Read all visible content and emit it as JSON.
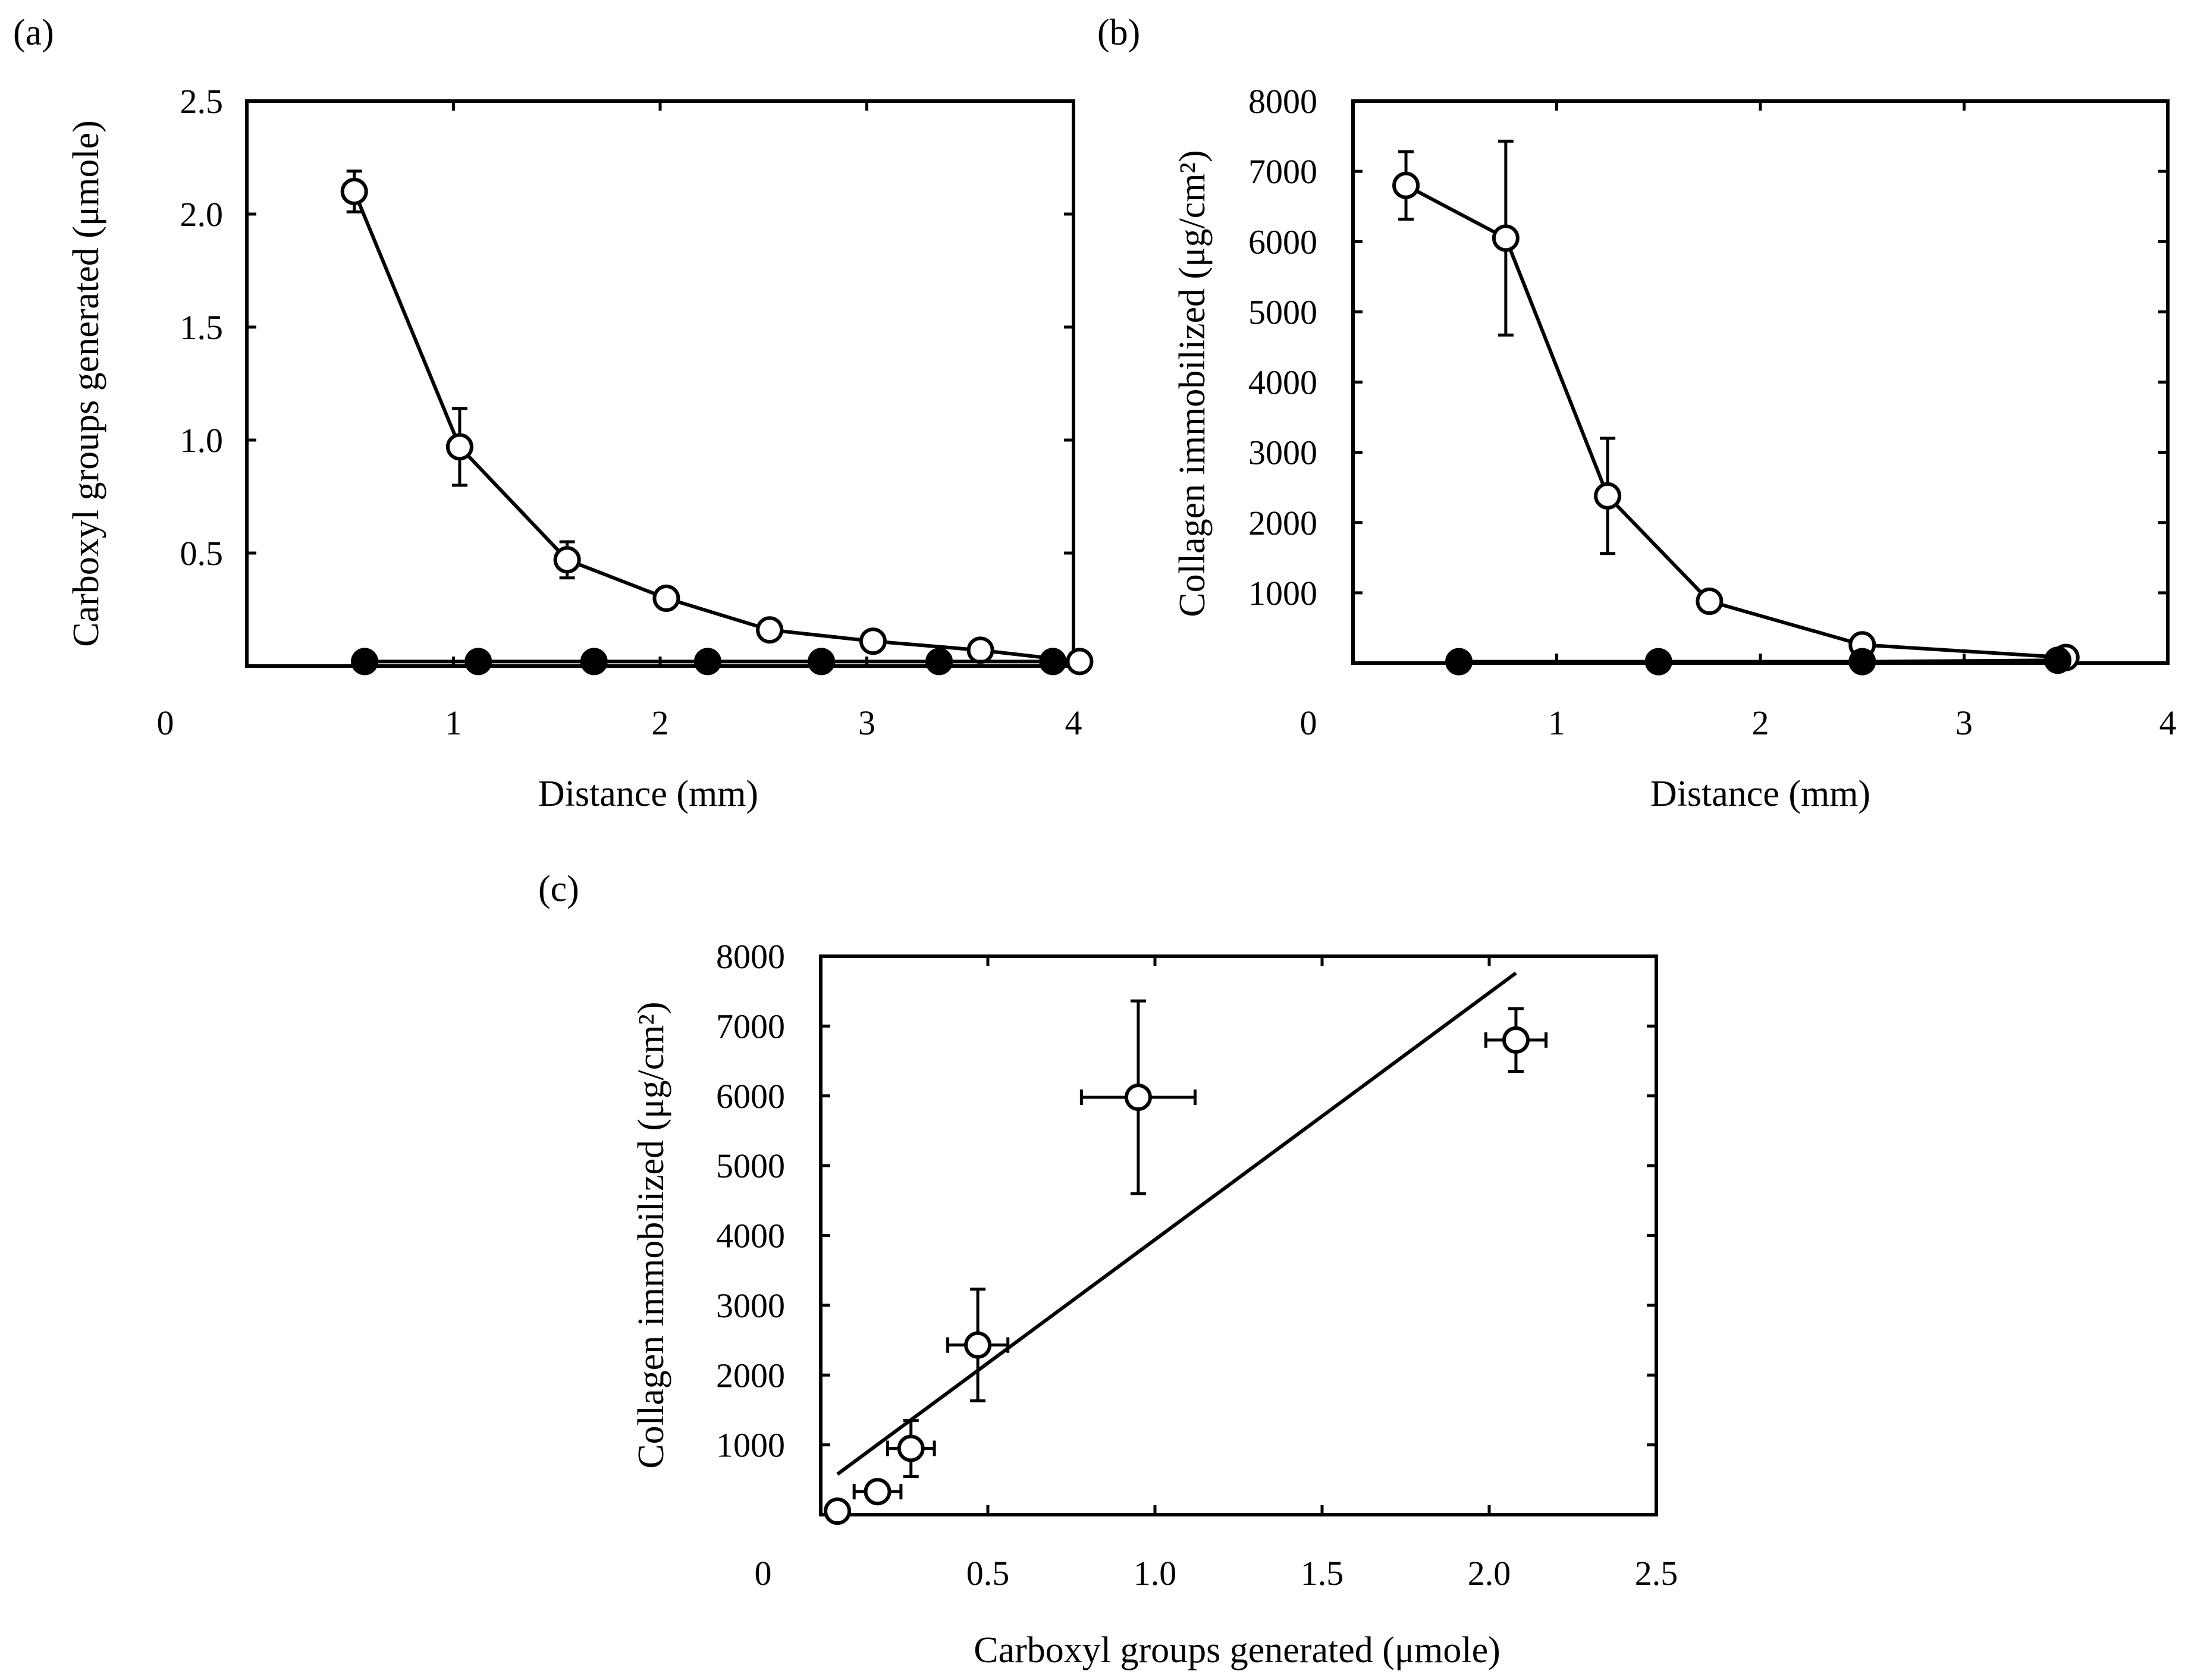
{
  "colors": {
    "ink": "#000000",
    "open_fill": "#ffffff",
    "background": "#ffffff"
  },
  "chart_data": [
    {
      "panel_label": "(a)",
      "type": "line",
      "xlabel": "Distance (mm)",
      "ylabel": "Carboxyl groups generated (μmole)",
      "xlim": [
        0,
        4
      ],
      "ylim": [
        0,
        2.5
      ],
      "xticks": [
        1,
        2,
        3,
        4
      ],
      "yticks": [
        0.5,
        1.0,
        1.5,
        2.0,
        2.5
      ],
      "xtick_labels": [
        "1",
        "2",
        "3",
        "4"
      ],
      "ytick_labels": [
        "0.5",
        "1.0",
        "1.5",
        "2.0",
        "2.5"
      ],
      "origin_label": "0",
      "series": [
        {
          "name": "open circles",
          "marker": "open",
          "connected": true,
          "x": [
            0.52,
            1.03,
            1.55,
            2.03,
            2.53,
            3.03,
            3.55,
            4.03
          ],
          "y": [
            2.1,
            0.97,
            0.47,
            0.3,
            0.16,
            0.11,
            0.07,
            0.02
          ],
          "yerr": [
            0.09,
            0.17,
            0.08,
            0.03,
            0.04,
            0.03,
            0.03,
            0.01
          ]
        },
        {
          "name": "filled circles",
          "marker": "filled",
          "connected": true,
          "x": [
            0.57,
            1.12,
            1.68,
            2.23,
            2.78,
            3.35,
            3.9
          ],
          "y": [
            0.02,
            0.02,
            0.02,
            0.02,
            0.02,
            0.02,
            0.02
          ],
          "yerr": [
            0,
            0,
            0,
            0,
            0,
            0,
            0
          ]
        }
      ]
    },
    {
      "panel_label": "(b)",
      "type": "line",
      "xlabel": "Distance (mm)",
      "ylabel": "Collagen immobilized (μg/cm²)",
      "xlim": [
        0,
        4
      ],
      "ylim": [
        0,
        8000
      ],
      "xticks": [
        1,
        2,
        3,
        4
      ],
      "yticks": [
        1000,
        2000,
        3000,
        4000,
        5000,
        6000,
        7000,
        8000
      ],
      "xtick_labels": [
        "1",
        "2",
        "3",
        "4"
      ],
      "ytick_labels": [
        "1000",
        "2000",
        "3000",
        "4000",
        "5000",
        "6000",
        "7000",
        "8000"
      ],
      "origin_label": "0",
      "series": [
        {
          "name": "open circles",
          "marker": "open",
          "connected": true,
          "x": [
            0.26,
            0.75,
            1.25,
            1.75,
            2.5,
            3.5
          ],
          "y": [
            6800,
            6050,
            2380,
            880,
            260,
            80
          ],
          "yerr": [
            480,
            1380,
            820,
            0,
            0,
            0
          ]
        },
        {
          "name": "filled circles",
          "marker": "filled",
          "connected": true,
          "x": [
            0.52,
            1.5,
            2.5,
            3.46
          ],
          "y": [
            20,
            20,
            20,
            40
          ],
          "yerr": [
            0,
            0,
            0,
            0
          ]
        }
      ]
    },
    {
      "panel_label": "(c)",
      "type": "scatter",
      "xlabel": "Carboxyl groups generated (μmole)",
      "ylabel": "Collagen immobilized (μg/cm²)",
      "xlim": [
        0,
        2.5
      ],
      "ylim": [
        0,
        8000
      ],
      "xticks": [
        0.5,
        1.0,
        1.5,
        2.0,
        2.5
      ],
      "yticks": [
        1000,
        2000,
        3000,
        4000,
        5000,
        6000,
        7000,
        8000
      ],
      "xtick_labels": [
        "0.5",
        "1.0",
        "1.5",
        "2.0",
        "2.5"
      ],
      "ytick_labels": [
        "1000",
        "2000",
        "3000",
        "4000",
        "5000",
        "6000",
        "7000",
        "8000"
      ],
      "origin_label": "0",
      "series": [
        {
          "name": "data",
          "marker": "open",
          "connected": false,
          "x": [
            0.05,
            0.17,
            0.27,
            0.47,
            0.95,
            2.08
          ],
          "y": [
            50,
            330,
            950,
            2430,
            5980,
            6800
          ],
          "xerr": [
            0,
            0.07,
            0.07,
            0.09,
            0.17,
            0.09
          ],
          "yerr": [
            0,
            0,
            400,
            800,
            1380,
            450
          ]
        }
      ],
      "fit_line": {
        "x": [
          0.05,
          2.08
        ],
        "y": [
          580,
          7760
        ]
      }
    }
  ]
}
